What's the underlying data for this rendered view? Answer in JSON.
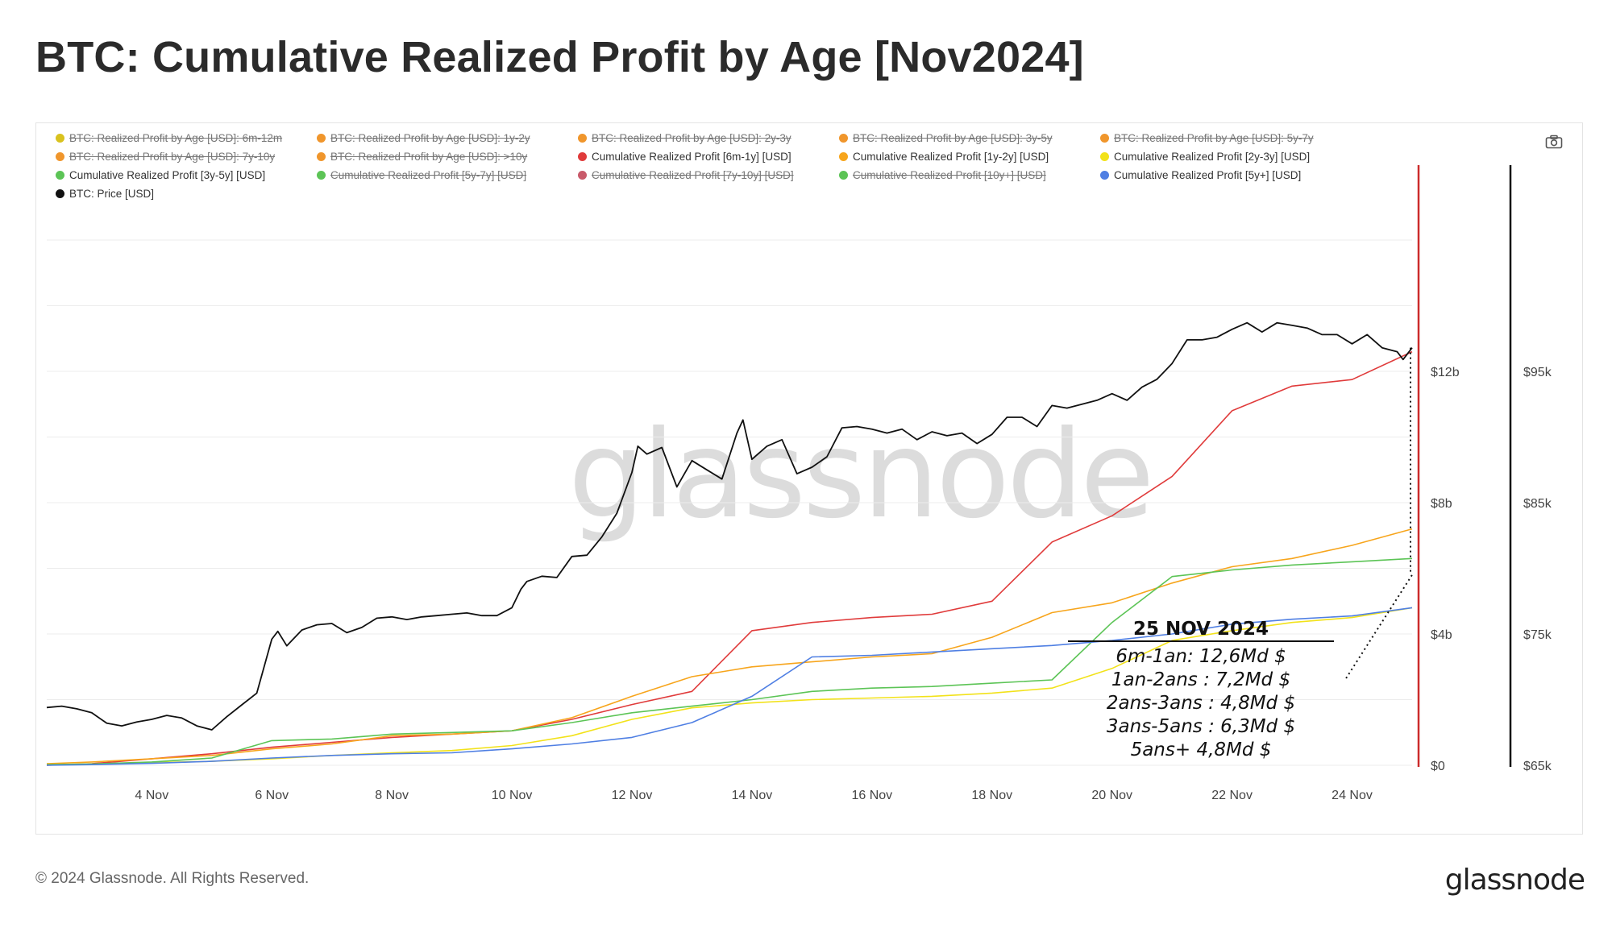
{
  "title": "BTC: Cumulative Realized Profit by Age [Nov2024]",
  "footer": {
    "copyright": "© 2024 Glassnode. All Rights Reserved.",
    "logo": "glassnode"
  },
  "watermark": "glassnode",
  "toolbar": {
    "camera_icon": "camera-icon"
  },
  "legend": [
    {
      "label": "BTC: Realized Profit by Age [USD]: 6m-12m",
      "color": "#d9c21e",
      "enabled": false
    },
    {
      "label": "BTC: Realized Profit by Age [USD]: 1y-2y",
      "color": "#f0962c",
      "enabled": false
    },
    {
      "label": "BTC: Realized Profit by Age [USD]: 2y-3y",
      "color": "#f0962c",
      "enabled": false
    },
    {
      "label": "BTC: Realized Profit by Age [USD]: 3y-5y",
      "color": "#f0962c",
      "enabled": false
    },
    {
      "label": "BTC: Realized Profit by Age [USD]: 5y-7y",
      "color": "#f0962c",
      "enabled": false
    },
    {
      "label": "BTC: Realized Profit by Age [USD]: 7y-10y",
      "color": "#f0962c",
      "enabled": false
    },
    {
      "label": "BTC: Realized Profit by Age [USD]: >10y",
      "color": "#f0962c",
      "enabled": false
    },
    {
      "label": "Cumulative Realized Profit [6m-1y] [USD]",
      "color": "#e03b3b",
      "enabled": true
    },
    {
      "label": "Cumulative Realized Profit [1y-2y] [USD]",
      "color": "#f7a51c",
      "enabled": true
    },
    {
      "label": "Cumulative Realized Profit [2y-3y] [USD]",
      "color": "#f2e21a",
      "enabled": true
    },
    {
      "label": "Cumulative Realized Profit [3y-5y] [USD]",
      "color": "#5cc456",
      "enabled": true
    },
    {
      "label": "Cumulative Realized Profit [5y-7y] [USD]",
      "color": "#5cc456",
      "enabled": false
    },
    {
      "label": "Cumulative Realized Profit [7y-10y] [USD]",
      "color": "#c95a6a",
      "enabled": false
    },
    {
      "label": "Cumulative Realized Profit [10y+] [USD]",
      "color": "#5cc456",
      "enabled": false
    },
    {
      "label": "Cumulative Realized Profit [5y+] [USD]",
      "color": "#4f7fe3",
      "enabled": true
    },
    {
      "label": "BTC: Price [USD]",
      "color": "#111111",
      "enabled": true
    }
  ],
  "annotation": {
    "date": "25 NOV 2024",
    "lines": [
      "6m-1an: 12,6Md $",
      "1an-2ans : 7,2Md $",
      "2ans-3ans : 4,8Md $",
      "3ans-5ans : 6,3Md $",
      "5ans+ 4,8Md $"
    ]
  },
  "chart_data": {
    "type": "line",
    "title": "BTC: Cumulative Realized Profit by Age [Nov2024]",
    "x_start": 2.25,
    "x_end": 25.0,
    "x_ticks": [
      4,
      6,
      8,
      10,
      12,
      14,
      16,
      18,
      20,
      22,
      24
    ],
    "x_tick_labels": [
      "4 Nov",
      "6 Nov",
      "8 Nov",
      "10 Nov",
      "12 Nov",
      "14 Nov",
      "16 Nov",
      "18 Nov",
      "20 Nov",
      "22 Nov",
      "24 Nov"
    ],
    "y_left": {
      "range": [
        0,
        16
      ],
      "ticks": [
        0,
        4,
        8,
        12
      ],
      "tick_labels": [
        "$0",
        "$4b",
        "$8b",
        "$12b"
      ],
      "unit": "USD billions"
    },
    "y_right": {
      "range": [
        65000,
        105000
      ],
      "ticks": [
        65000,
        75000,
        85000,
        95000
      ],
      "tick_labels": [
        "$65k",
        "$75k",
        "$85k",
        "$95k"
      ]
    },
    "grid": true,
    "event_line": {
      "x": 25.0,
      "color": "#cc2b2b"
    },
    "series": [
      {
        "name": "Cumulative Realized Profit [6m-1y] [USD]",
        "color": "#e03b3b",
        "axis": "left",
        "x": [
          2.25,
          3,
          4,
          5,
          6,
          7,
          8,
          9,
          10,
          11,
          12,
          13,
          14,
          15,
          16,
          17,
          18,
          19,
          20,
          21,
          22,
          23,
          24,
          25
        ],
        "values": [
          0.0,
          0.05,
          0.2,
          0.35,
          0.55,
          0.7,
          0.85,
          0.95,
          1.05,
          1.4,
          1.85,
          2.25,
          4.1,
          4.35,
          4.5,
          4.6,
          5.0,
          6.8,
          7.6,
          8.8,
          10.8,
          11.55,
          11.75,
          12.6
        ]
      },
      {
        "name": "Cumulative Realized Profit [1y-2y] [USD]",
        "color": "#f7a51c",
        "axis": "left",
        "x": [
          2.25,
          3,
          4,
          5,
          6,
          7,
          8,
          9,
          10,
          11,
          12,
          13,
          14,
          15,
          16,
          17,
          18,
          19,
          20,
          21,
          22,
          23,
          24,
          25
        ],
        "values": [
          0.05,
          0.1,
          0.2,
          0.3,
          0.5,
          0.65,
          0.9,
          0.95,
          1.05,
          1.45,
          2.1,
          2.7,
          3.0,
          3.15,
          3.3,
          3.4,
          3.9,
          4.65,
          4.95,
          5.55,
          6.05,
          6.3,
          6.7,
          7.2
        ]
      },
      {
        "name": "Cumulative Realized Profit [2y-3y] [USD]",
        "color": "#f2e21a",
        "axis": "left",
        "x": [
          2.25,
          3,
          4,
          5,
          6,
          7,
          8,
          9,
          10,
          11,
          12,
          13,
          14,
          15,
          16,
          17,
          18,
          19,
          20,
          21,
          22,
          23,
          24,
          25
        ],
        "values": [
          0.02,
          0.04,
          0.08,
          0.12,
          0.2,
          0.3,
          0.38,
          0.45,
          0.6,
          0.9,
          1.4,
          1.75,
          1.9,
          2.0,
          2.05,
          2.1,
          2.2,
          2.35,
          2.95,
          3.8,
          4.1,
          4.35,
          4.5,
          4.8
        ]
      },
      {
        "name": "Cumulative Realized Profit [3y-5y] [USD]",
        "color": "#5cc456",
        "axis": "left",
        "x": [
          2.25,
          3,
          4,
          5,
          6,
          7,
          8,
          9,
          10,
          11,
          12,
          13,
          14,
          15,
          16,
          17,
          18,
          19,
          20,
          21,
          22,
          23,
          24,
          25
        ],
        "values": [
          0.02,
          0.04,
          0.1,
          0.22,
          0.75,
          0.8,
          0.95,
          1.0,
          1.05,
          1.3,
          1.6,
          1.8,
          2.0,
          2.25,
          2.35,
          2.4,
          2.5,
          2.6,
          4.35,
          5.75,
          5.95,
          6.1,
          6.2,
          6.3
        ]
      },
      {
        "name": "Cumulative Realized Profit [5y+] [USD]",
        "color": "#4f7fe3",
        "axis": "left",
        "x": [
          2.25,
          3,
          4,
          5,
          6,
          7,
          8,
          9,
          10,
          11,
          12,
          13,
          14,
          15,
          16,
          17,
          18,
          19,
          20,
          21,
          22,
          23,
          24,
          25
        ],
        "values": [
          0.0,
          0.02,
          0.06,
          0.12,
          0.22,
          0.3,
          0.35,
          0.38,
          0.5,
          0.65,
          0.85,
          1.3,
          2.1,
          3.3,
          3.35,
          3.45,
          3.55,
          3.65,
          3.8,
          4.0,
          4.3,
          4.45,
          4.55,
          4.8
        ]
      },
      {
        "name": "BTC: Price [USD]",
        "color": "#111111",
        "axis": "right",
        "x": [
          2.25,
          2.5,
          2.75,
          3.0,
          3.25,
          3.5,
          3.75,
          4.0,
          4.25,
          4.5,
          4.75,
          5.0,
          5.25,
          5.5,
          5.75,
          6.0,
          6.1,
          6.25,
          6.5,
          6.75,
          7.0,
          7.25,
          7.5,
          7.75,
          8.0,
          8.25,
          8.5,
          8.75,
          9.0,
          9.25,
          9.5,
          9.75,
          10.0,
          10.15,
          10.25,
          10.5,
          10.75,
          11.0,
          11.25,
          11.5,
          11.75,
          12.0,
          12.1,
          12.25,
          12.5,
          12.75,
          13.0,
          13.25,
          13.5,
          13.75,
          13.85,
          14.0,
          14.25,
          14.5,
          14.75,
          15.0,
          15.25,
          15.5,
          15.75,
          16.0,
          16.25,
          16.5,
          16.75,
          17.0,
          17.25,
          17.5,
          17.75,
          18.0,
          18.25,
          18.5,
          18.75,
          19.0,
          19.25,
          19.5,
          19.75,
          20.0,
          20.25,
          20.5,
          20.75,
          21.0,
          21.25,
          21.5,
          21.75,
          22.0,
          22.25,
          22.5,
          22.75,
          23.0,
          23.25,
          23.5,
          23.75,
          24.0,
          24.25,
          24.5,
          24.75,
          24.85,
          25.0
        ],
        "values": [
          69400,
          69500,
          69300,
          69000,
          68200,
          68000,
          68300,
          68500,
          68800,
          68600,
          68000,
          67700,
          68700,
          69600,
          70500,
          74600,
          75200,
          74100,
          75300,
          75700,
          75800,
          75100,
          75500,
          76200,
          76300,
          76100,
          76300,
          76400,
          76500,
          76600,
          76400,
          76400,
          77000,
          78400,
          79000,
          79400,
          79300,
          80900,
          81000,
          82400,
          84200,
          87300,
          89300,
          88700,
          89200,
          86200,
          88200,
          87500,
          86800,
          90300,
          91300,
          88300,
          89300,
          89800,
          87200,
          87700,
          88500,
          90700,
          90800,
          90600,
          90300,
          90600,
          89800,
          90400,
          90100,
          90300,
          89500,
          90200,
          91500,
          91500,
          90800,
          92400,
          92200,
          92500,
          92800,
          93300,
          92800,
          93800,
          94400,
          95600,
          97400,
          97400,
          97600,
          98200,
          98700,
          98000,
          98700,
          98500,
          98300,
          97800,
          97800,
          97100,
          97800,
          96800,
          96500,
          95900,
          96800
        ]
      }
    ],
    "annotation_connector": {
      "from": {
        "x": 23.9,
        "y": 2.65
      },
      "to": {
        "x": 25.0,
        "y": 5.8
      }
    }
  }
}
